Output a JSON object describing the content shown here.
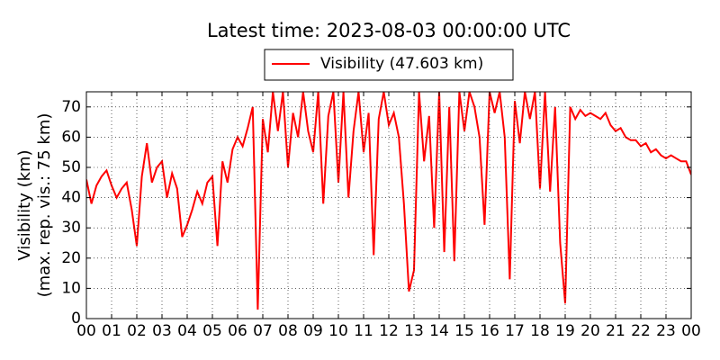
{
  "chart_data": {
    "type": "line",
    "title": "Latest time: 2023-08-03 00:00:00 UTC",
    "y_label": [
      "Visibility (km)",
      "(max. rep. vis.: 75 km)"
    ],
    "x": [
      0,
      0.2,
      0.4,
      0.6,
      0.8,
      1,
      1.2,
      1.4,
      1.6,
      1.8,
      2,
      2.2,
      2.4,
      2.6,
      2.8,
      3,
      3.2,
      3.4,
      3.6,
      3.8,
      4,
      4.2,
      4.4,
      4.6,
      4.8,
      5,
      5.2,
      5.4,
      5.6,
      5.8,
      6,
      6.2,
      6.4,
      6.6,
      6.8,
      7,
      7.2,
      7.4,
      7.6,
      7.8,
      8,
      8.2,
      8.4,
      8.6,
      8.8,
      9,
      9.2,
      9.4,
      9.6,
      9.8,
      10,
      10.2,
      10.4,
      10.6,
      10.8,
      11,
      11.2,
      11.4,
      11.6,
      11.8,
      12,
      12.2,
      12.4,
      12.6,
      12.8,
      13,
      13.2,
      13.4,
      13.6,
      13.8,
      14,
      14.2,
      14.4,
      14.6,
      14.8,
      15,
      15.2,
      15.4,
      15.6,
      15.8,
      16,
      16.2,
      16.4,
      16.6,
      16.8,
      17,
      17.2,
      17.4,
      17.6,
      17.8,
      18,
      18.2,
      18.4,
      18.6,
      18.8,
      19,
      19.2,
      19.4,
      19.6,
      19.8,
      20,
      20.2,
      20.4,
      20.6,
      20.8,
      21,
      21.2,
      21.4,
      21.6,
      21.8,
      22,
      22.2,
      22.4,
      22.6,
      22.8,
      23,
      23.2,
      23.4,
      23.6,
      23.8,
      24
    ],
    "series": [
      {
        "name": "Visibility (47.603 km)",
        "color": "#ff0000",
        "values": [
          46,
          38,
          44,
          47,
          49,
          44,
          40,
          43,
          45,
          36,
          24,
          47,
          58,
          45,
          50,
          52,
          40,
          48,
          43,
          27,
          31,
          36,
          42,
          38,
          45,
          47,
          24,
          52,
          45,
          56,
          60,
          57,
          63,
          70,
          3,
          66,
          55,
          75,
          62,
          75,
          50,
          68,
          60,
          75,
          62,
          55,
          75,
          38,
          67,
          75,
          45,
          75,
          40,
          62,
          75,
          55,
          68,
          21,
          66,
          75,
          64,
          68,
          60,
          38,
          9,
          16,
          75,
          52,
          67,
          30,
          75,
          22,
          70,
          19,
          75,
          62,
          75,
          70,
          60,
          31,
          75,
          68,
          75,
          60,
          13,
          72,
          58,
          75,
          66,
          75,
          43,
          75,
          42,
          70,
          25,
          5,
          70,
          66,
          69,
          67,
          68,
          67,
          66,
          68,
          64,
          62,
          63,
          60,
          59,
          59,
          57,
          58,
          55,
          56,
          54,
          53,
          54,
          53,
          52,
          52,
          47.603
        ]
      }
    ],
    "xlim": [
      0,
      24
    ],
    "xticks": [
      {
        "value": 0,
        "label": "00"
      },
      {
        "value": 1,
        "label": "01"
      },
      {
        "value": 2,
        "label": "02"
      },
      {
        "value": 3,
        "label": "03"
      },
      {
        "value": 4,
        "label": "04"
      },
      {
        "value": 5,
        "label": "05"
      },
      {
        "value": 6,
        "label": "06"
      },
      {
        "value": 7,
        "label": "07"
      },
      {
        "value": 8,
        "label": "08"
      },
      {
        "value": 9,
        "label": "09"
      },
      {
        "value": 10,
        "label": "10"
      },
      {
        "value": 11,
        "label": "11"
      },
      {
        "value": 12,
        "label": "12"
      },
      {
        "value": 13,
        "label": "13"
      },
      {
        "value": 14,
        "label": "14"
      },
      {
        "value": 15,
        "label": "15"
      },
      {
        "value": 16,
        "label": "16"
      },
      {
        "value": 17,
        "label": "17"
      },
      {
        "value": 18,
        "label": "18"
      },
      {
        "value": 19,
        "label": "19"
      },
      {
        "value": 20,
        "label": "20"
      },
      {
        "value": 21,
        "label": "21"
      },
      {
        "value": 22,
        "label": "22"
      },
      {
        "value": 23,
        "label": "23"
      },
      {
        "value": 24,
        "label": "00"
      }
    ],
    "ylim": [
      0,
      75
    ],
    "yticks": [
      0,
      10,
      20,
      30,
      40,
      50,
      60,
      70
    ],
    "grid": true,
    "legend": "top"
  }
}
